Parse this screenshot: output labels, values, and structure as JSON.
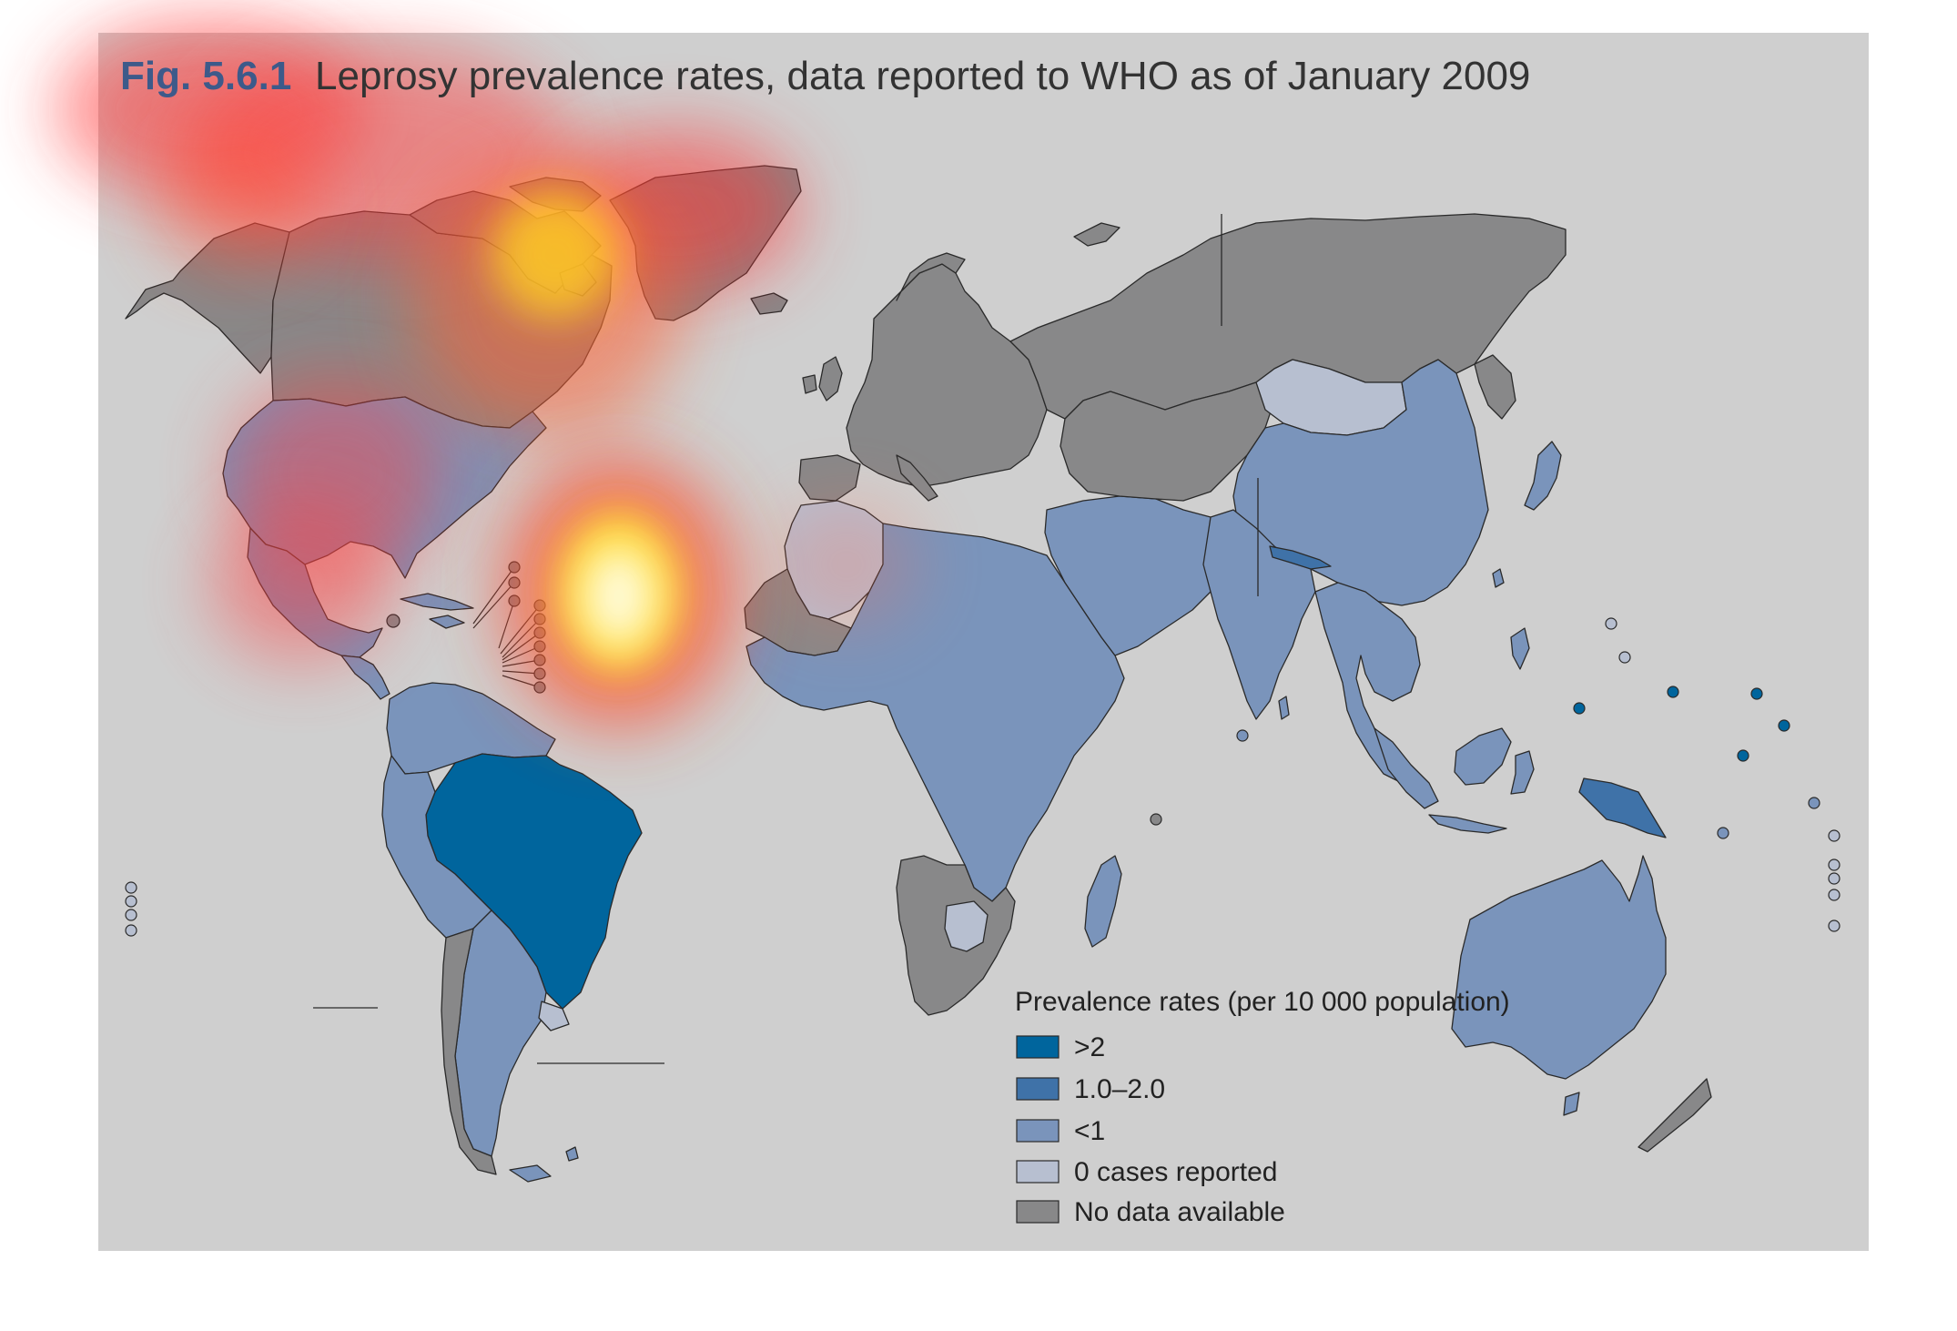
{
  "figure": {
    "number": "Fig. 5.6.1",
    "title": "Leprosy prevalence rates, data reported to WHO as of January 2009"
  },
  "colors": {
    "background": "#cfcfcf",
    "title_number": "#3d5a8a",
    "title_text": "#333333",
    "gt2": "#00659d",
    "r1to2": "#3f72a8",
    "lt1": "#7a94bb",
    "zero": "#b7bfd0",
    "no_data": "#888889"
  },
  "legend": {
    "title": "Prevalence rates (per 10 000 population)",
    "items": [
      {
        "label": ">2",
        "category": "gt2"
      },
      {
        "label": "1.0–2.0",
        "category": "r1to2"
      },
      {
        "label": "<1",
        "category": "lt1"
      },
      {
        "label": "0 cases reported",
        "category": "zero"
      },
      {
        "label": "No data available",
        "category": "no_data"
      }
    ]
  },
  "regions": [
    {
      "name": "alaska",
      "category": "no_data"
    },
    {
      "name": "canada",
      "category": "no_data"
    },
    {
      "name": "canadian-arctic-islands",
      "category": "no_data"
    },
    {
      "name": "greenland",
      "category": "no_data"
    },
    {
      "name": "iceland",
      "category": "no_data"
    },
    {
      "name": "usa",
      "category": "lt1"
    },
    {
      "name": "mexico",
      "category": "lt1"
    },
    {
      "name": "central-america",
      "category": "lt1"
    },
    {
      "name": "cuba",
      "category": "lt1"
    },
    {
      "name": "hispaniola",
      "category": "lt1"
    },
    {
      "name": "south-america-north",
      "category": "lt1"
    },
    {
      "name": "brazil",
      "category": "gt2"
    },
    {
      "name": "south-america-west",
      "category": "lt1"
    },
    {
      "name": "argentina",
      "category": "lt1"
    },
    {
      "name": "chile",
      "category": "no_data"
    },
    {
      "name": "uruguay",
      "category": "zero"
    },
    {
      "name": "europe",
      "category": "no_data"
    },
    {
      "name": "russia",
      "category": "no_data"
    },
    {
      "name": "north-africa-west",
      "category": "zero"
    },
    {
      "name": "west-sahara",
      "category": "no_data"
    },
    {
      "name": "africa",
      "category": "lt1"
    },
    {
      "name": "southern-africa",
      "category": "no_data"
    },
    {
      "name": "south-africa-zero",
      "category": "zero"
    },
    {
      "name": "madagascar",
      "category": "lt1"
    },
    {
      "name": "middle-east",
      "category": "lt1"
    },
    {
      "name": "central-asia",
      "category": "no_data"
    },
    {
      "name": "mongolia",
      "category": "zero"
    },
    {
      "name": "china",
      "category": "lt1"
    },
    {
      "name": "india",
      "category": "lt1"
    },
    {
      "name": "nepal",
      "category": "r1to2"
    },
    {
      "name": "southeast-asia",
      "category": "lt1"
    },
    {
      "name": "indonesia",
      "category": "lt1"
    },
    {
      "name": "papua-new-guinea",
      "category": "r1to2"
    },
    {
      "name": "japan",
      "category": "lt1"
    },
    {
      "name": "australia",
      "category": "lt1"
    },
    {
      "name": "new-zealand",
      "category": "no_data"
    }
  ]
}
